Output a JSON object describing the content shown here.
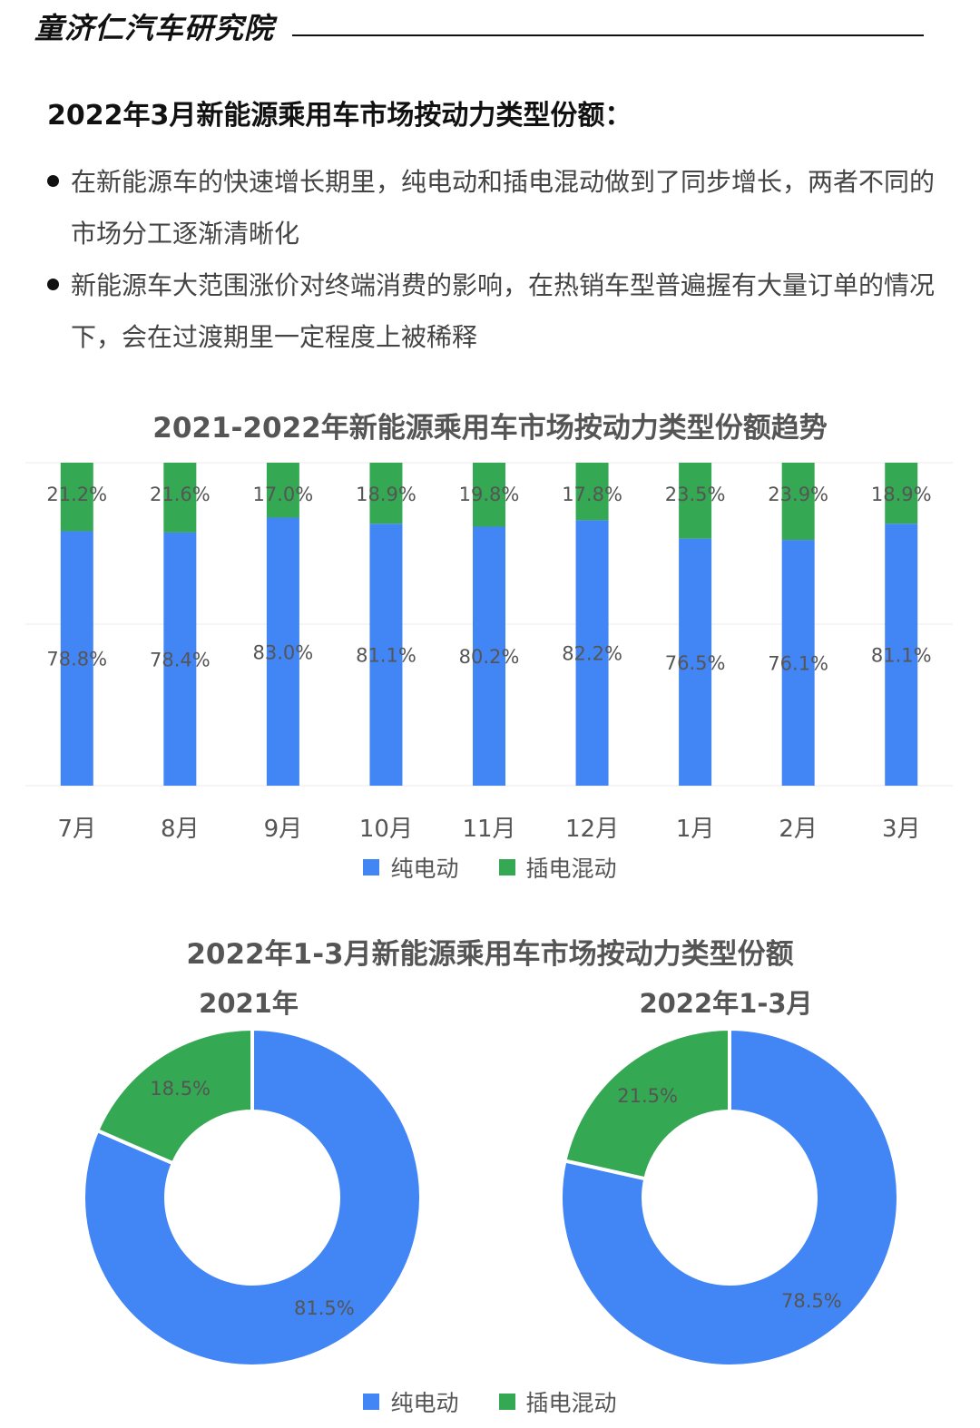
{
  "header": {
    "brand": "童济仁汽车研究院"
  },
  "page_title": "2022年3月新能源乘用车市场按动力类型份额：",
  "bullets": [
    "在新能源车的快速增长期里，纯电动和插电混动做到了同步增长，两者不同的市场分工逐渐清晰化",
    "新能源车大范围涨价对终端消费的影响，在热销车型普遍握有大量订单的情况下，会在过渡期里一定程度上被稀释"
  ],
  "colors": {
    "bev": "#4285f4",
    "phev": "#34a853",
    "grid": "#ebebeb"
  },
  "legend": {
    "bev": "纯电动",
    "phev": "插电混动"
  },
  "chart_data": [
    {
      "type": "bar",
      "stacked": true,
      "title": "2021-2022年新能源乘用车市场按动力类型份额趋势",
      "categories": [
        "7月",
        "8月",
        "9月",
        "10月",
        "11月",
        "12月",
        "1月",
        "2月",
        "3月"
      ],
      "series": [
        {
          "name": "纯电动",
          "values": [
            78.8,
            78.4,
            83.0,
            81.1,
            80.2,
            82.2,
            76.5,
            76.1,
            81.1
          ],
          "labels": [
            "78.8%",
            "78.4%",
            "83.0%",
            "81.1%",
            "80.2%",
            "82.2%",
            "76.5%",
            "76.1%",
            "81.1%"
          ]
        },
        {
          "name": "插电混动",
          "values": [
            21.2,
            21.6,
            17.0,
            18.9,
            19.8,
            17.8,
            23.5,
            23.9,
            18.9
          ],
          "labels": [
            "21.2%",
            "21.6%",
            "17.0%",
            "18.9%",
            "19.8%",
            "17.8%",
            "23.5%",
            "23.9%",
            "18.9%"
          ]
        }
      ],
      "ylim": [
        0,
        100
      ],
      "legend_position": "bottom"
    },
    {
      "type": "pie",
      "donut": true,
      "title": "2022年1-3月新能源乘用车市场按动力类型份额",
      "subplots": [
        {
          "title": "2021年",
          "slices": [
            {
              "name": "纯电动",
              "value": 81.5,
              "label": "81.5%"
            },
            {
              "name": "插电混动",
              "value": 18.5,
              "label": "18.5%"
            }
          ]
        },
        {
          "title": "2022年1-3月",
          "slices": [
            {
              "name": "纯电动",
              "value": 78.5,
              "label": "78.5%"
            },
            {
              "name": "插电混动",
              "value": 21.5,
              "label": "21.5%"
            }
          ]
        }
      ],
      "legend_position": "bottom"
    }
  ]
}
